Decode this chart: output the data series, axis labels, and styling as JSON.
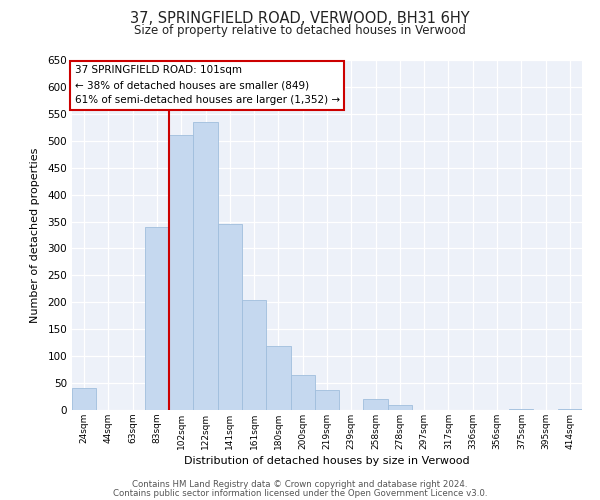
{
  "title": "37, SPRINGFIELD ROAD, VERWOOD, BH31 6HY",
  "subtitle": "Size of property relative to detached houses in Verwood",
  "xlabel": "Distribution of detached houses by size in Verwood",
  "ylabel": "Number of detached properties",
  "bin_labels": [
    "24sqm",
    "44sqm",
    "63sqm",
    "83sqm",
    "102sqm",
    "122sqm",
    "141sqm",
    "161sqm",
    "180sqm",
    "200sqm",
    "219sqm",
    "239sqm",
    "258sqm",
    "278sqm",
    "297sqm",
    "317sqm",
    "336sqm",
    "356sqm",
    "375sqm",
    "395sqm",
    "414sqm"
  ],
  "bar_heights": [
    40,
    0,
    0,
    340,
    510,
    535,
    345,
    205,
    118,
    65,
    38,
    0,
    20,
    10,
    0,
    0,
    0,
    0,
    2,
    0,
    2
  ],
  "bar_color": "#c5d8ef",
  "bar_edge_color": "#a0bedd",
  "highlight_bar_index": 4,
  "highlight_line_color": "#cc0000",
  "annotation_line1": "37 SPRINGFIELD ROAD: 101sqm",
  "annotation_line2": "← 38% of detached houses are smaller (849)",
  "annotation_line3": "61% of semi-detached houses are larger (1,352) →",
  "annotation_box_color": "#ffffff",
  "annotation_box_edge": "#cc0000",
  "ylim": [
    0,
    650
  ],
  "yticks": [
    0,
    50,
    100,
    150,
    200,
    250,
    300,
    350,
    400,
    450,
    500,
    550,
    600,
    650
  ],
  "footer1": "Contains HM Land Registry data © Crown copyright and database right 2024.",
  "footer2": "Contains public sector information licensed under the Open Government Licence v3.0.",
  "bg_color": "#ffffff",
  "plot_bg_color": "#edf1f9"
}
